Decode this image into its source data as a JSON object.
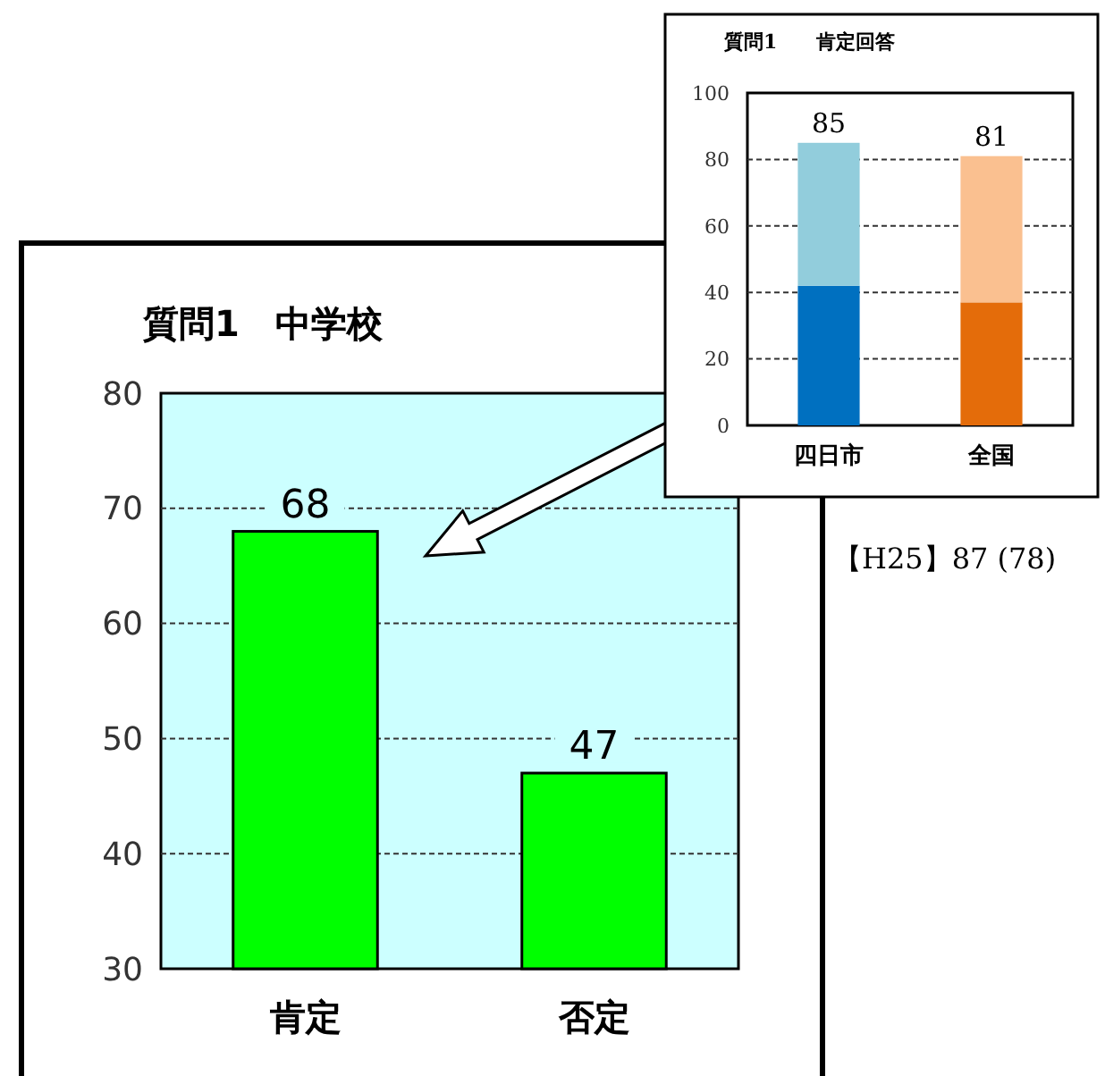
{
  "chart_data": [
    {
      "type": "bar",
      "title": "質問1　中学校",
      "categories": [
        "肯定",
        "否定"
      ],
      "values": [
        68,
        47
      ],
      "color": "#00ff00",
      "ylim": [
        30,
        80
      ],
      "yticks": [
        30,
        40,
        50,
        60,
        70,
        80
      ],
      "grid": "y",
      "data_labels": true
    },
    {
      "type": "bar",
      "stacked": true,
      "title": "質問1　　肯定回答",
      "categories": [
        "四日市",
        "全国"
      ],
      "series": [
        {
          "values": [
            42,
            37
          ],
          "colors": [
            "#0070c0",
            "#e46c0a"
          ]
        },
        {
          "values": [
            43,
            44
          ],
          "colors": [
            "#92cddc",
            "#fac090"
          ]
        }
      ],
      "totals": [
        "85",
        "81"
      ],
      "ylim": [
        0,
        100
      ],
      "yticks": [
        0,
        20,
        40,
        60,
        80,
        100
      ],
      "grid": "y",
      "annotations": [
        "【H25】87 (78)"
      ]
    }
  ]
}
